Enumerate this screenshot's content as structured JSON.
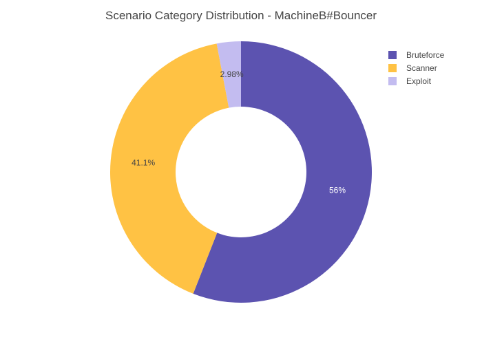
{
  "chart_data": {
    "type": "pie",
    "title": "Scenario Category Distribution - MachineB#Bouncer",
    "hole": 0.5,
    "categories": [
      "Bruteforce",
      "Scanner",
      "Exploit"
    ],
    "values": [
      56,
      41.1,
      2.98
    ],
    "labels": [
      "56%",
      "41.1%",
      "2.98%"
    ],
    "colors": [
      "#5c53b0",
      "#ffc244",
      "#c3bcf0"
    ],
    "label_colors": [
      "#ffffff",
      "#444444",
      "#444444"
    ],
    "legend": {
      "position": "top-right",
      "entries": [
        "Bruteforce",
        "Scanner",
        "Exploit"
      ]
    },
    "start": "12 o'clock",
    "direction": "clockwise"
  }
}
